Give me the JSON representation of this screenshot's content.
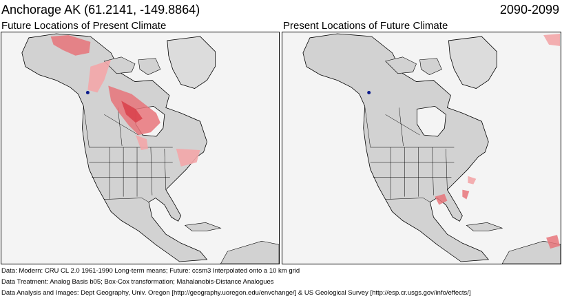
{
  "header": {
    "location": "Anchorage AK  (61.2141, -149.8864)",
    "period": "2090-2099"
  },
  "panels": [
    {
      "title": "Future Locations of Present Climate",
      "map": "north-america-analog-map"
    },
    {
      "title": "Present Locations of Future Climate",
      "map": "north-america-analog-map"
    }
  ],
  "colors": {
    "ocean": "#f4f4f4",
    "land": "#d2d2d2",
    "borders": "#000000",
    "analog_light": "#f3a6a8",
    "analog_mid": "#e8747a",
    "analog_strong": "#d9404a",
    "site_marker": "#0a1a8c"
  },
  "footer": {
    "line1": "Data:  Modern: CRU CL 2.0 1961-1990 Long-term means; Future: ccsm3 Interpolated onto a 10 km grid",
    "line2": "Data Treatment:  Analog Basis b05; Box-Cox transformation; Mahalanobis-Distance Analogues",
    "line3": "Data Analysis and Images:  Dept Geography, Univ. Oregon [http://geography.uoregon.edu/envchange/] & US Geological Survey [http://esp.cr.usgs.gov/info/effects/]"
  }
}
